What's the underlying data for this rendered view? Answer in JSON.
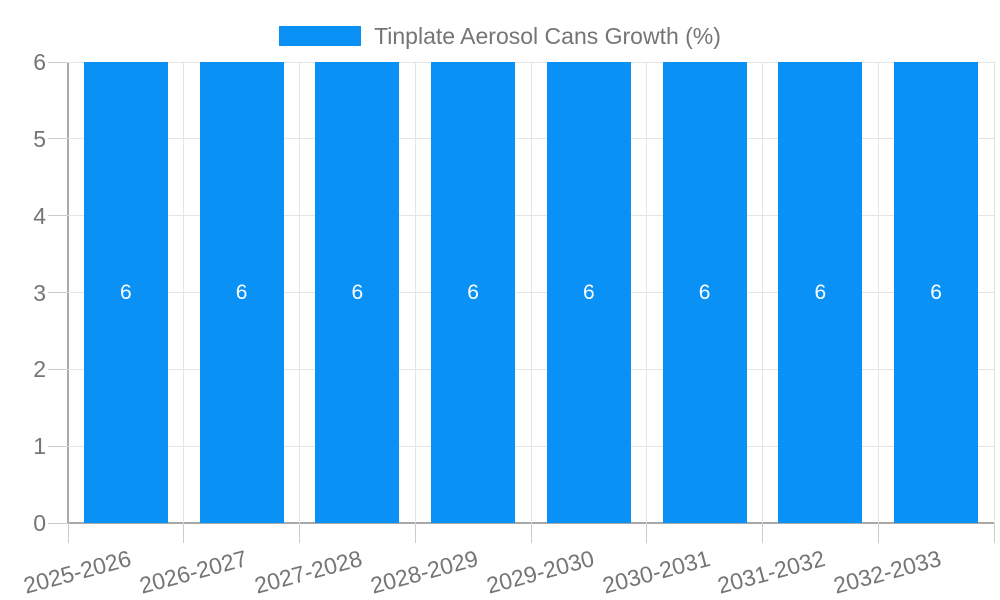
{
  "chart_data": {
    "type": "bar",
    "title": "Tinplate Aerosol Cans Growth (%)",
    "legend": {
      "position": "top",
      "entries": [
        "Tinplate Aerosol Cans Growth (%)"
      ]
    },
    "categories": [
      "2025-2026",
      "2026-2027",
      "2027-2028",
      "2028-2029",
      "2029-2030",
      "2030-2031",
      "2031-2032",
      "2032-2033"
    ],
    "values": [
      6,
      6,
      6,
      6,
      6,
      6,
      6,
      6
    ],
    "value_labels": [
      "6",
      "6",
      "6",
      "6",
      "6",
      "6",
      "6",
      "6"
    ],
    "xlabel": "",
    "ylabel": "",
    "ylim": [
      0,
      6
    ],
    "yticks": [
      0,
      1,
      2,
      3,
      4,
      5,
      6
    ],
    "grid": true,
    "x_tick_label_rotation_deg": -15
  },
  "colors": {
    "bar": "#0991F6",
    "bar_value_label": "#FFFFFF",
    "axis_text": "#757575",
    "legend_text": "#757575",
    "grid_line": "#E5E5E5",
    "tick_line": "#CCCCCC",
    "axis_line": "#A8A8A8",
    "background": "#FFFFFF"
  }
}
